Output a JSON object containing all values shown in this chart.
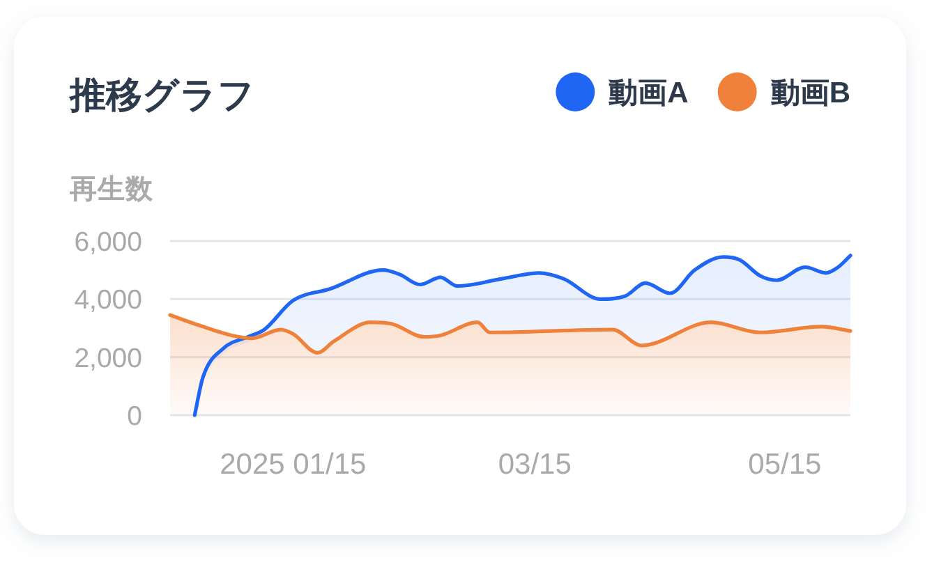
{
  "chart_data": {
    "type": "area",
    "title": "推移グラフ",
    "ylabel": "再生数",
    "series": [
      {
        "name": "動画A",
        "color": "#1f66f4",
        "x": [
          "2024-12-22",
          "2024-12-24",
          "2024-12-29",
          "2025-01-04",
          "2025-01-08",
          "2025-01-15",
          "2025-01-24",
          "2025-02-06",
          "2025-02-10",
          "2025-02-15",
          "2025-02-20",
          "2025-02-24",
          "2025-03-07",
          "2025-03-16",
          "2025-03-22",
          "2025-03-31",
          "2025-04-06",
          "2025-04-11",
          "2025-04-17",
          "2025-04-23",
          "2025-04-30",
          "2025-05-04",
          "2025-05-09",
          "2025-05-13",
          "2025-05-20",
          "2025-05-25",
          "2025-05-28",
          "2025-05-31"
        ],
        "values": [
          0,
          1300,
          2300,
          2700,
          2950,
          3950,
          4350,
          5000,
          4850,
          4500,
          4750,
          4450,
          4700,
          4900,
          4700,
          4000,
          4100,
          4550,
          4200,
          5000,
          5450,
          5350,
          4800,
          4650,
          5100,
          4900,
          5100,
          5500
        ]
      },
      {
        "name": "動画B",
        "color": "#f0813a",
        "x": [
          "2024-12-16",
          "2024-12-23",
          "2024-12-31",
          "2025-01-05",
          "2025-01-12",
          "2025-01-15",
          "2025-01-21",
          "2025-01-25",
          "2025-02-03",
          "2025-02-08",
          "2025-02-16",
          "2025-02-20",
          "2025-03-01",
          "2025-03-04",
          "2025-04-03",
          "2025-04-10",
          "2025-04-27",
          "2025-05-09",
          "2025-05-24",
          "2025-05-31"
        ],
        "values": [
          3450,
          3100,
          2750,
          2650,
          2950,
          2800,
          2150,
          2550,
          3200,
          3150,
          2700,
          2750,
          3200,
          2850,
          2950,
          2400,
          3200,
          2850,
          3050,
          2900
        ]
      }
    ],
    "xlim": [
      "2024-12-16",
      "2025-05-31"
    ],
    "xticks": [
      {
        "value": "2025-01-15",
        "label": "2025 01/15"
      },
      {
        "value": "2025-03-15",
        "label": "03/15"
      },
      {
        "value": "2025-05-15",
        "label": "05/15"
      }
    ],
    "ylim": [
      0,
      6000
    ],
    "yticks": [
      0,
      {
        "value": 2000,
        "label": "2,000"
      },
      {
        "value": 4000,
        "label": "4,000"
      },
      {
        "value": 6000,
        "label": "6,000"
      }
    ],
    "grid": "y",
    "legend": "top right",
    "line_style": "solid"
  }
}
